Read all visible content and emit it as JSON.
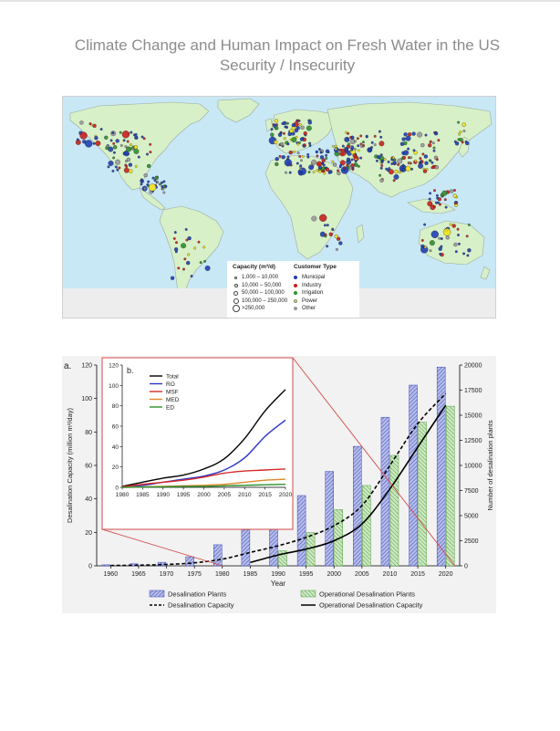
{
  "page": {
    "title_line1": "Climate Change and Human Impact on Fresh Water in the US",
    "title_line2": "Security / Insecurity"
  },
  "map": {
    "legend": {
      "capacity_heading": "Capacity (m³/d)",
      "capacity_classes": [
        "1,000 – 10,000",
        "10,000 – 50,000",
        "50,000 – 100,000",
        "100,000 – 250,000",
        ">250,000"
      ],
      "customer_heading": "Customer Type",
      "customer_types": [
        {
          "label": "Municipal",
          "color": "#1f3fb4"
        },
        {
          "label": "Industry",
          "color": "#c8201e"
        },
        {
          "label": "Irrigation",
          "color": "#2f8f2f"
        },
        {
          "label": "Power",
          "color": "#f2e21c"
        },
        {
          "label": "Other",
          "color": "#9a9a9a"
        }
      ]
    },
    "colors": {
      "ocean": "#c9e8f6",
      "land": "#d8f0c8",
      "border": "#9aaa9a"
    }
  },
  "chart_data": {
    "type": "bar",
    "panel_a_label": "a.",
    "x": [
      1960,
      1965,
      1970,
      1975,
      1980,
      1985,
      1990,
      1995,
      2000,
      2005,
      2010,
      2015,
      2020
    ],
    "xlabel": "Year",
    "ylabel_left": "Desalination Capacity (million m³/day)",
    "ylabel_right": "Number of desalination plants",
    "ylim_left": [
      0,
      120
    ],
    "ylim_right": [
      0,
      20000
    ],
    "yticks_left": [
      0,
      20,
      40,
      60,
      80,
      100,
      120
    ],
    "yticks_right": [
      0,
      2500,
      5000,
      7500,
      10000,
      12500,
      15000,
      17500,
      20000
    ],
    "series": [
      {
        "name": "Desalination Plants",
        "kind": "bar",
        "axis": "right",
        "color": "#3a47b8",
        "values": [
          100,
          200,
          350,
          900,
          2100,
          3600,
          5200,
          7000,
          9400,
          11900,
          14800,
          18000,
          19800
        ]
      },
      {
        "name": "Operational Desalination Plants",
        "kind": "bar",
        "axis": "right",
        "color": "#4e9e3c",
        "values": [
          null,
          null,
          null,
          null,
          null,
          null,
          1500,
          3300,
          5600,
          8000,
          11000,
          14300,
          15900
        ]
      },
      {
        "name": "Desalination Capacity",
        "kind": "line",
        "axis": "left",
        "color": "#000000",
        "dashed": true,
        "values": [
          0.2,
          0.4,
          0.8,
          1.8,
          4,
          8,
          12,
          17,
          24,
          36,
          60,
          85,
          103
        ]
      },
      {
        "name": "Operational Desalination Capacity",
        "kind": "line",
        "axis": "left",
        "color": "#000000",
        "dashed": false,
        "values": [
          null,
          null,
          null,
          null,
          null,
          2,
          6.5,
          10,
          15,
          25,
          46,
          71,
          96
        ]
      }
    ],
    "inset": {
      "label": "b.",
      "x": [
        1980,
        1985,
        1990,
        1995,
        2000,
        2005,
        2010,
        2015,
        2020
      ],
      "xticks": [
        1980,
        1985,
        1990,
        1995,
        2000,
        2005,
        2010,
        2015,
        2020
      ],
      "ylim": [
        0,
        120
      ],
      "yticks": [
        0,
        20,
        40,
        60,
        80,
        100,
        120
      ],
      "series": [
        {
          "name": "Total",
          "color": "#000000",
          "values": [
            1,
            5,
            9,
            12,
            18,
            28,
            48,
            75,
            96
          ]
        },
        {
          "name": "RO",
          "color": "#2b36c9",
          "values": [
            0.5,
            2,
            5,
            8,
            11,
            17,
            29,
            50,
            66
          ]
        },
        {
          "name": "MSF",
          "color": "#d62a2a",
          "values": [
            0.5,
            3,
            5,
            7,
            10,
            14,
            16,
            17,
            18
          ]
        },
        {
          "name": "MED",
          "color": "#e08a2a",
          "values": [
            0,
            0.5,
            1,
            1.5,
            2,
            3,
            5,
            7,
            8
          ]
        },
        {
          "name": "ED",
          "color": "#2e8f2e",
          "values": [
            0,
            0.3,
            0.5,
            0.8,
            1,
            1.5,
            2,
            2.5,
            3
          ]
        }
      ]
    },
    "legend_placement": "bottom",
    "grid": false
  }
}
